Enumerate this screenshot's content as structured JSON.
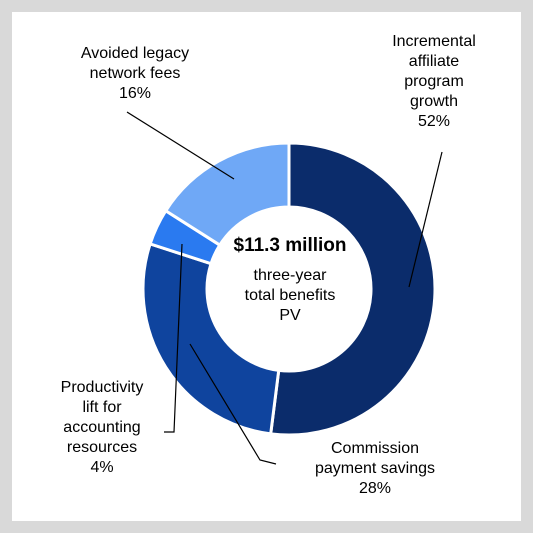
{
  "chart_data": {
    "type": "pie",
    "subtype": "donut",
    "center_value": "$11.3 million",
    "center_caption": "three-year\ntotal benefits\nPV",
    "slices": [
      {
        "label": "Incremental\naffiliate\nprogram\ngrowth",
        "value": 52,
        "value_label": "52%",
        "color": "#0b2c6b"
      },
      {
        "label": "Commission\npayment savings",
        "value": 28,
        "value_label": "28%",
        "color": "#0f449e"
      },
      {
        "label": "Productivity\nlift for\naccounting\nresources",
        "value": 4,
        "value_label": "4%",
        "color": "#2a7af0"
      },
      {
        "label": "Avoided legacy\nnetwork fees",
        "value": 16,
        "value_label": "16%",
        "color": "#6fa8f6"
      }
    ]
  }
}
